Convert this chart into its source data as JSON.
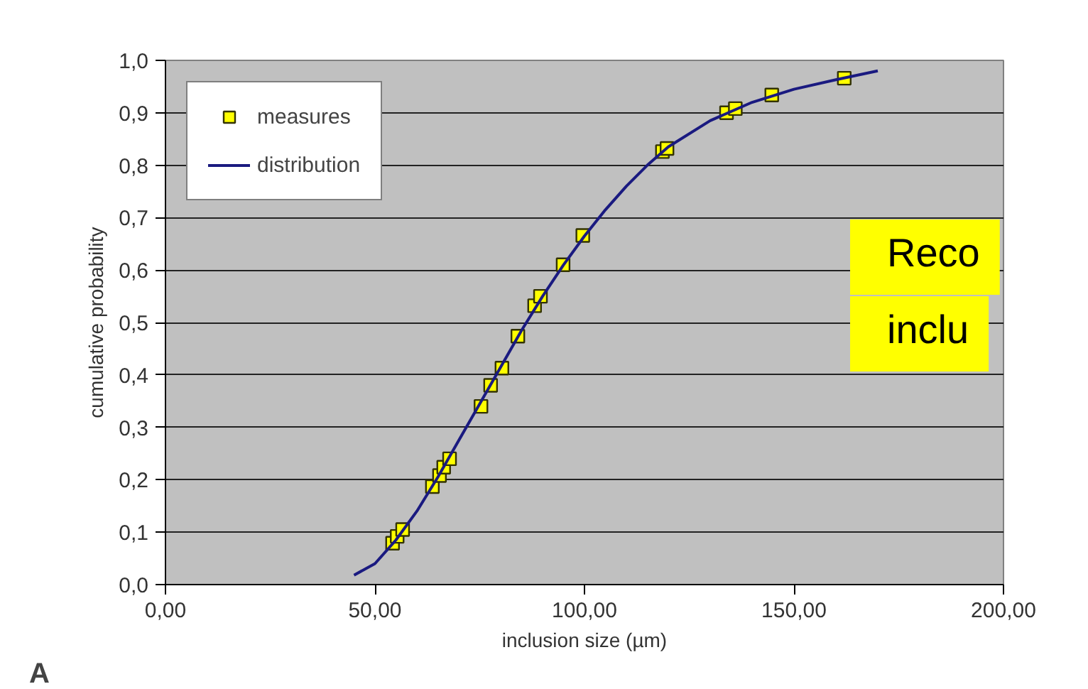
{
  "chart_data": {
    "type": "scatter",
    "xlabel": "inclusion size (µm)",
    "ylabel": "cumulative probability",
    "xlim": [
      0,
      200
    ],
    "ylim": [
      0,
      1
    ],
    "xticks": [
      {
        "value": 0,
        "label": "0,00"
      },
      {
        "value": 50,
        "label": "50,00"
      },
      {
        "value": 100,
        "label": "100,00"
      },
      {
        "value": 150,
        "label": "150,00"
      },
      {
        "value": 200,
        "label": "200,00"
      }
    ],
    "yticks": [
      {
        "value": 0,
        "label": "0,0"
      },
      {
        "value": 0.1,
        "label": "0,1"
      },
      {
        "value": 0.2,
        "label": "0,2"
      },
      {
        "value": 0.3,
        "label": "0,3"
      },
      {
        "value": 0.4,
        "label": "0,4"
      },
      {
        "value": 0.5,
        "label": "0,5"
      },
      {
        "value": 0.6,
        "label": "0,6"
      },
      {
        "value": 0.7,
        "label": "0,7"
      },
      {
        "value": 0.8,
        "label": "0,8"
      },
      {
        "value": 0.9,
        "label": "0,9"
      },
      {
        "value": 1.0,
        "label": "1,0"
      }
    ],
    "grid": "y",
    "legend": "top left",
    "series": [
      {
        "name": "measures",
        "type": "scatter",
        "marker": "square",
        "color": "#ffff00",
        "x": [
          54.2,
          55.3,
          56.6,
          63.7,
          65.4,
          66.4,
          67.8,
          75.3,
          77.6,
          80.3,
          84.1,
          88.1,
          89.5,
          94.9,
          99.6,
          118.6,
          119.7,
          133.9,
          136,
          144.7,
          162
        ],
        "values": [
          0.079,
          0.092,
          0.105,
          0.187,
          0.208,
          0.224,
          0.24,
          0.34,
          0.38,
          0.413,
          0.474,
          0.532,
          0.55,
          0.61,
          0.666,
          0.826,
          0.832,
          0.9,
          0.908,
          0.934,
          0.966
        ]
      },
      {
        "name": "distribution",
        "type": "line",
        "color": "#1a1a80",
        "x": [
          45,
          50,
          55,
          60,
          65,
          70,
          75,
          80,
          85,
          90,
          95,
          100,
          105,
          110,
          115,
          120,
          130,
          140,
          150,
          160,
          170
        ],
        "values": [
          0.018,
          0.04,
          0.085,
          0.14,
          0.205,
          0.275,
          0.345,
          0.415,
          0.485,
          0.55,
          0.61,
          0.665,
          0.715,
          0.76,
          0.8,
          0.835,
          0.885,
          0.92,
          0.945,
          0.963,
          0.98
        ]
      }
    ],
    "annotations": [
      "A",
      "Reco",
      "inclu"
    ]
  }
}
